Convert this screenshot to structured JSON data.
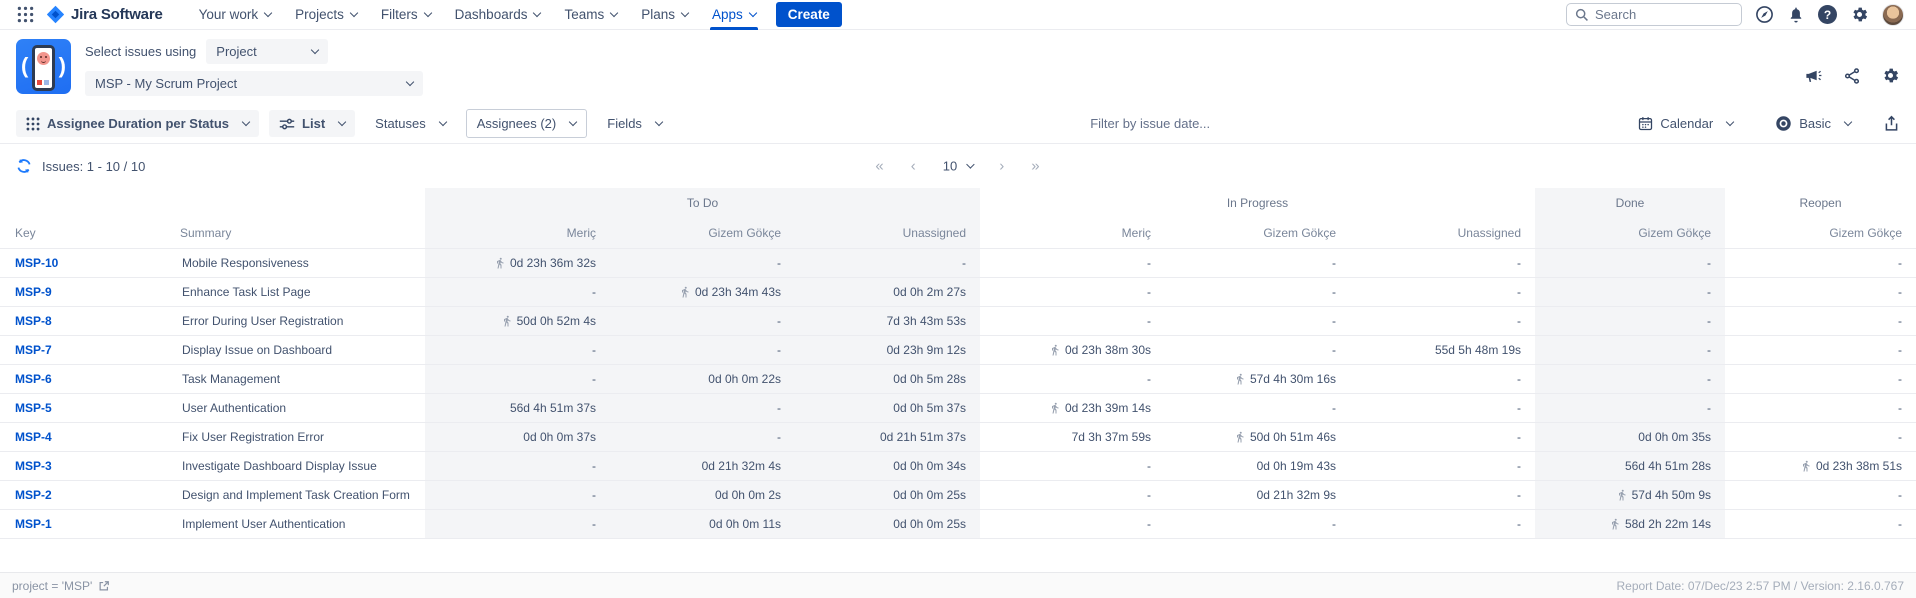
{
  "topnav": {
    "brand": "Jira Software",
    "items": [
      {
        "label": "Your work"
      },
      {
        "label": "Projects"
      },
      {
        "label": "Filters"
      },
      {
        "label": "Dashboards"
      },
      {
        "label": "Teams"
      },
      {
        "label": "Plans"
      },
      {
        "label": "Apps",
        "active": true
      }
    ],
    "create_label": "Create",
    "search_placeholder": "Search"
  },
  "header": {
    "select_label": "Select issues using",
    "mode_value": "Project",
    "project_value": "MSP - My Scrum Project"
  },
  "toolbar": {
    "report_selector": "Assignee Duration per Status",
    "view_selector": "List",
    "statuses_label": "Statuses",
    "assignees_label": "Assignees (2)",
    "fields_label": "Fields",
    "date_filter_placeholder": "Filter by issue date...",
    "calendar_label": "Calendar",
    "detail_label": "Basic"
  },
  "pagination": {
    "issues_label": "Issues: 1 - 10 / 10",
    "first": "«",
    "prev": "‹",
    "page_size": "10",
    "next": "›",
    "last": "»"
  },
  "table": {
    "groups": [
      {
        "label": "To Do",
        "cols": 3,
        "shaded": true
      },
      {
        "label": "In Progress",
        "cols": 3,
        "shaded": false
      },
      {
        "label": "Done",
        "cols": 1,
        "shaded": true
      },
      {
        "label": "Reopen",
        "cols": 1,
        "shaded": false
      }
    ],
    "columns": [
      "Key",
      "Summary",
      "Meriç",
      "Gizem Gökçe",
      "Unassigned",
      "Meriç",
      "Gizem Gökçe",
      "Unassigned",
      "Gizem Gökçe",
      "Gizem Gökçe"
    ],
    "rows": [
      {
        "key": "MSP-10",
        "summary": "Mobile Responsiveness",
        "cells": [
          {
            "t": "0d 23h 36m 32s",
            "run": true
          },
          "-",
          "-",
          "-",
          "-",
          "-",
          "-",
          "-"
        ]
      },
      {
        "key": "MSP-9",
        "summary": "Enhance Task List Page",
        "cells": [
          "-",
          {
            "t": "0d 23h 34m 43s",
            "run": true
          },
          "0d 0h 2m 27s",
          "-",
          "-",
          "-",
          "-",
          "-"
        ]
      },
      {
        "key": "MSP-8",
        "summary": "Error During User Registration",
        "cells": [
          {
            "t": "50d 0h 52m 4s",
            "run": true
          },
          "-",
          "7d 3h 43m 53s",
          "-",
          "-",
          "-",
          "-",
          "-"
        ]
      },
      {
        "key": "MSP-7",
        "summary": "Display Issue on Dashboard",
        "cells": [
          "-",
          "-",
          "0d 23h 9m 12s",
          {
            "t": "0d 23h 38m 30s",
            "run": true
          },
          "-",
          "55d 5h 48m 19s",
          "-",
          "-"
        ]
      },
      {
        "key": "MSP-6",
        "summary": "Task Management",
        "cells": [
          "-",
          "0d 0h 0m 22s",
          "0d 0h 5m 28s",
          "-",
          {
            "t": "57d 4h 30m 16s",
            "run": true
          },
          "-",
          "-",
          "-"
        ]
      },
      {
        "key": "MSP-5",
        "summary": "User Authentication",
        "cells": [
          "56d 4h 51m 37s",
          "-",
          "0d 0h 5m 37s",
          {
            "t": "0d 23h 39m 14s",
            "run": true
          },
          "-",
          "-",
          "-",
          "-"
        ]
      },
      {
        "key": "MSP-4",
        "summary": "Fix User Registration Error",
        "cells": [
          "0d 0h 0m 37s",
          "-",
          "0d 21h 51m 37s",
          "7d 3h 37m 59s",
          {
            "t": "50d 0h 51m 46s",
            "run": true
          },
          "-",
          "0d 0h 0m 35s",
          "-"
        ]
      },
      {
        "key": "MSP-3",
        "summary": "Investigate Dashboard Display Issue",
        "cells": [
          "-",
          "0d 21h 32m 4s",
          "0d 0h 0m 34s",
          "-",
          "0d 0h 19m 43s",
          "-",
          "56d 4h 51m 28s",
          {
            "t": "0d 23h 38m 51s",
            "run": true
          }
        ]
      },
      {
        "key": "MSP-2",
        "summary": "Design and Implement Task Creation Form",
        "cells": [
          "-",
          "0d 0h 0m 2s",
          "0d 0h 0m 25s",
          "-",
          "0d 21h 32m 9s",
          "-",
          {
            "t": "57d 4h 50m 9s",
            "run": true
          },
          "-"
        ]
      },
      {
        "key": "MSP-1",
        "summary": "Implement User Authentication",
        "cells": [
          "-",
          "0d 0h 0m 11s",
          "0d 0h 0m 25s",
          "-",
          "-",
          "-",
          {
            "t": "58d 2h 22m 14s",
            "run": true
          },
          "-"
        ]
      }
    ]
  },
  "footer": {
    "jql": "project = 'MSP'",
    "report_info": "Report Date: 07/Dec/23 2:57 PM / Version: 2.16.0.767"
  },
  "icons": {
    "app_switcher": "grid-dots",
    "logo": "jira-diamond",
    "search": "magnifier",
    "discover": "compass",
    "notifications": "bell",
    "help": "question-circle",
    "settings": "gear",
    "profile": "avatar-photo",
    "feedback": "megaphone",
    "share": "share-nodes",
    "report_type": "grid",
    "view": "sliders",
    "calendar": "calendar",
    "detail_level": "eye",
    "export": "box-up-arrow",
    "refresh": "circular-arrows",
    "in_status": "running-person",
    "jql_link": "external-link"
  }
}
